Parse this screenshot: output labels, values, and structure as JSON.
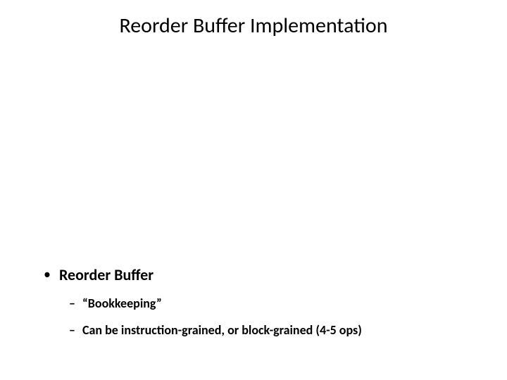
{
  "slide": {
    "title": "Reorder Buffer Implementation",
    "title_fontsize": 30,
    "title_color": "#000000",
    "background_color": "#ffffff",
    "body": {
      "bullet1": {
        "marker": "•",
        "text": "Reorder Buffer",
        "fontsize": 22,
        "fontweight": "700"
      },
      "sub1": {
        "marker": "–",
        "text": "“Bookkeeping”",
        "fontsize": 18,
        "fontweight": "700"
      },
      "sub2": {
        "marker": "–",
        "text": "Can be instruction-grained, or block-grained (4-5 ops)",
        "fontsize": 18,
        "fontweight": "700"
      }
    }
  }
}
